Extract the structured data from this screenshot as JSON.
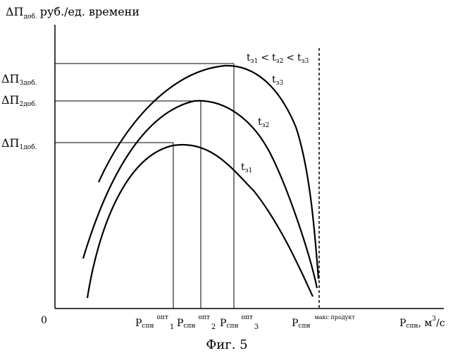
{
  "diagram": {
    "axis_y_symbol": "ΔП",
    "axis_y_sub": "доб.",
    "axis_y_unit": "руб./ед. времени",
    "origin_label": "0",
    "axis_x_symbol": "P",
    "axis_x_sub": "спн",
    "axis_x_unit": ", м",
    "axis_x_unit_sup": "3",
    "axis_x_unit_tail": "/с",
    "level_labels": [
      {
        "symbol": "ΔП",
        "sub": "1доб."
      },
      {
        "symbol": "ΔП",
        "sub": "2доб."
      },
      {
        "symbol": "ΔП",
        "sub": "3доб."
      }
    ],
    "x_opt_labels": [
      {
        "symbol": "P",
        "sub": "спн",
        "sup": "опт",
        "idx": "1"
      },
      {
        "symbol": "P",
        "sub": "спн",
        "sup": "опт",
        "idx": "2"
      },
      {
        "symbol": "P",
        "sub": "спн",
        "sup": "опт",
        "idx": "3"
      }
    ],
    "x_max_label": {
      "symbol": "P",
      "sub": "спн",
      "sup": "макс продукт"
    },
    "curve_labels": [
      {
        "symbol": "t",
        "sub": "з1"
      },
      {
        "symbol": "t",
        "sub": "з2"
      },
      {
        "symbol": "t",
        "sub": "з3"
      }
    ],
    "relation": {
      "parts": [
        {
          "symbol": "t",
          "sub": "з1"
        },
        {
          "symbol": "t",
          "sub": "з2"
        },
        {
          "symbol": "t",
          "sub": "з3"
        }
      ],
      "op": "<"
    },
    "caption": "Фиг. 5"
  }
}
